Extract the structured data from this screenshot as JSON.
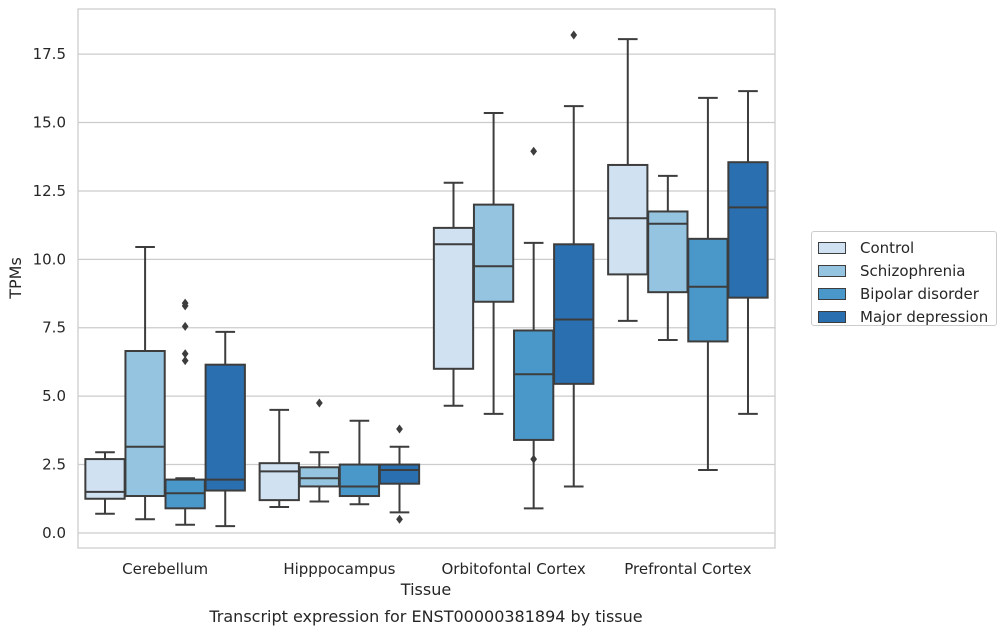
{
  "chart_data": {
    "type": "box",
    "xlabel": "Tissue",
    "ylabel": "TPMs",
    "caption": "Transcript expression for ENST00000381894 by tissue",
    "ylim": [
      -0.55,
      19.15
    ],
    "yticks": [
      0.0,
      2.5,
      5.0,
      7.5,
      10.0,
      12.5,
      15.0,
      17.5
    ],
    "ytick_labels": [
      "0.0",
      "2.5",
      "5.0",
      "7.5",
      "10.0",
      "12.5",
      "15.0",
      "17.5"
    ],
    "grid": "horizontal",
    "legend_position": "right",
    "categories": [
      "Cerebellum",
      "Hipppocampus",
      "Orbitofontal Cortex",
      "Prefrontal Cortex"
    ],
    "series": [
      {
        "name": "Control",
        "color": "#d0e1f2",
        "boxes": [
          {
            "whislo": 0.7,
            "q1": 1.25,
            "median": 1.5,
            "q3": 2.7,
            "whishi": 2.95,
            "fliers": []
          },
          {
            "whislo": 0.95,
            "q1": 1.2,
            "median": 2.25,
            "q3": 2.55,
            "whishi": 4.5,
            "fliers": []
          },
          {
            "whislo": 4.65,
            "q1": 6.0,
            "median": 10.55,
            "q3": 11.15,
            "whishi": 12.8,
            "fliers": []
          },
          {
            "whislo": 7.75,
            "q1": 9.45,
            "median": 11.5,
            "q3": 13.45,
            "whishi": 18.05,
            "fliers": []
          }
        ]
      },
      {
        "name": "Schizophrenia",
        "color": "#94c4df",
        "boxes": [
          {
            "whislo": 0.5,
            "q1": 1.35,
            "median": 3.15,
            "q3": 6.65,
            "whishi": 10.45,
            "fliers": []
          },
          {
            "whislo": 1.15,
            "q1": 1.7,
            "median": 2.0,
            "q3": 2.4,
            "whishi": 2.95,
            "fliers": [
              4.75
            ]
          },
          {
            "whislo": 4.35,
            "q1": 8.45,
            "median": 9.75,
            "q3": 12.0,
            "whishi": 15.35,
            "fliers": []
          },
          {
            "whislo": 7.05,
            "q1": 8.8,
            "median": 11.3,
            "q3": 11.75,
            "whishi": 13.05,
            "fliers": []
          }
        ]
      },
      {
        "name": "Bipolar disorder",
        "color": "#4a98c9",
        "boxes": [
          {
            "whislo": 0.3,
            "q1": 0.9,
            "median": 1.45,
            "q3": 1.95,
            "whishi": 2.0,
            "fliers": [
              6.3,
              7.55,
              8.3,
              6.55,
              8.4
            ]
          },
          {
            "whislo": 1.05,
            "q1": 1.35,
            "median": 1.7,
            "q3": 2.5,
            "whishi": 4.1,
            "fliers": []
          },
          {
            "whislo": 0.9,
            "q1": 3.4,
            "median": 5.8,
            "q3": 7.4,
            "whishi": 10.6,
            "fliers": [
              2.7,
              13.95
            ]
          },
          {
            "whislo": 2.3,
            "q1": 7.0,
            "median": 9.0,
            "q3": 10.75,
            "whishi": 15.9,
            "fliers": []
          }
        ]
      },
      {
        "name": "Major depression",
        "color": "#2a6fb0",
        "boxes": [
          {
            "whislo": 0.25,
            "q1": 1.55,
            "median": 1.95,
            "q3": 6.15,
            "whishi": 7.35,
            "fliers": []
          },
          {
            "whislo": 0.75,
            "q1": 1.8,
            "median": 2.3,
            "q3": 2.5,
            "whishi": 3.15,
            "fliers": [
              0.5,
              3.8
            ]
          },
          {
            "whislo": 1.7,
            "q1": 5.45,
            "median": 7.8,
            "q3": 10.55,
            "whishi": 15.6,
            "fliers": [
              18.2
            ]
          },
          {
            "whislo": 4.35,
            "q1": 8.6,
            "median": 11.9,
            "q3": 13.55,
            "whishi": 16.15,
            "fliers": []
          }
        ]
      }
    ]
  }
}
